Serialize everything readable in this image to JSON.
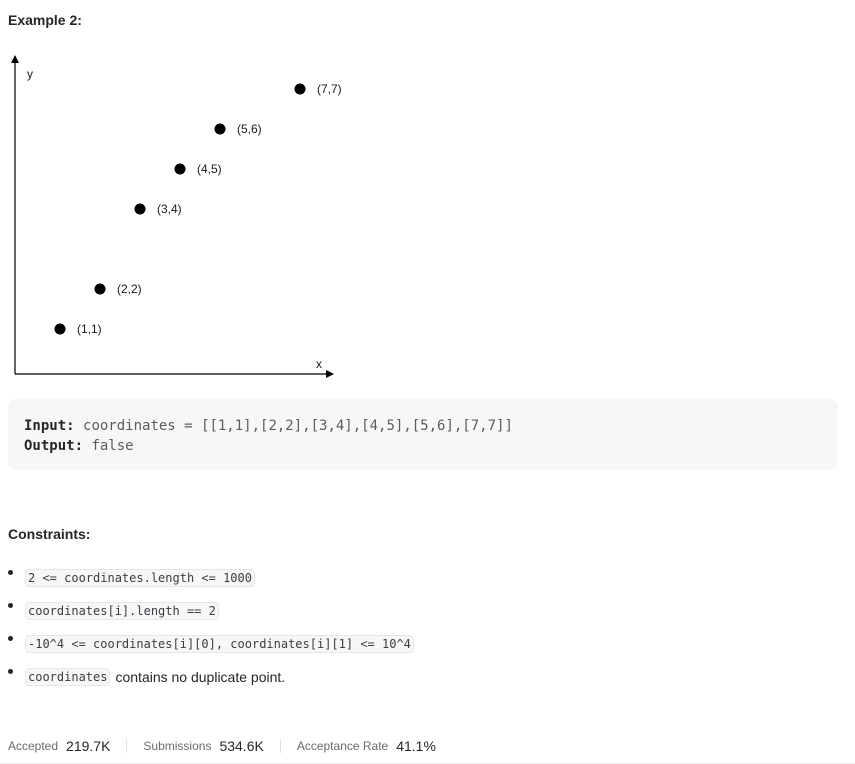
{
  "example": {
    "heading": "Example 2:",
    "input_label": "Input:",
    "input_value": "coordinates = [[1,1],[2,2],[3,4],[4,5],[5,6],[7,7]]",
    "output_label": "Output:",
    "output_value": "false"
  },
  "chart_data": {
    "type": "scatter",
    "xlabel": "x",
    "ylabel": "y",
    "grid": false,
    "xlim": [
      0,
      8
    ],
    "ylim": [
      0,
      8
    ],
    "points": [
      {
        "x": 1,
        "y": 1,
        "label": "(1,1)"
      },
      {
        "x": 2,
        "y": 2,
        "label": "(2,2)"
      },
      {
        "x": 3,
        "y": 4,
        "label": "(3,4)"
      },
      {
        "x": 4,
        "y": 5,
        "label": "(4,5)"
      },
      {
        "x": 5,
        "y": 6,
        "label": "(5,6)"
      },
      {
        "x": 7,
        "y": 7,
        "label": "(7,7)"
      }
    ],
    "point_color": "#000000"
  },
  "constraints": {
    "heading": "Constraints:",
    "items": [
      {
        "code": "2 <= coordinates.length <= 1000",
        "text": ""
      },
      {
        "code": "coordinates[i].length == 2",
        "text": ""
      },
      {
        "code": "-10^4 <= coordinates[i][0], coordinates[i][1] <= 10^4",
        "text": ""
      },
      {
        "code": "coordinates",
        "text": "contains no duplicate point."
      }
    ]
  },
  "stats": {
    "accepted_label": "Accepted",
    "accepted_value": "219.7K",
    "submissions_label": "Submissions",
    "submissions_value": "534.6K",
    "rate_label": "Acceptance Rate",
    "rate_value": "41.1%"
  }
}
